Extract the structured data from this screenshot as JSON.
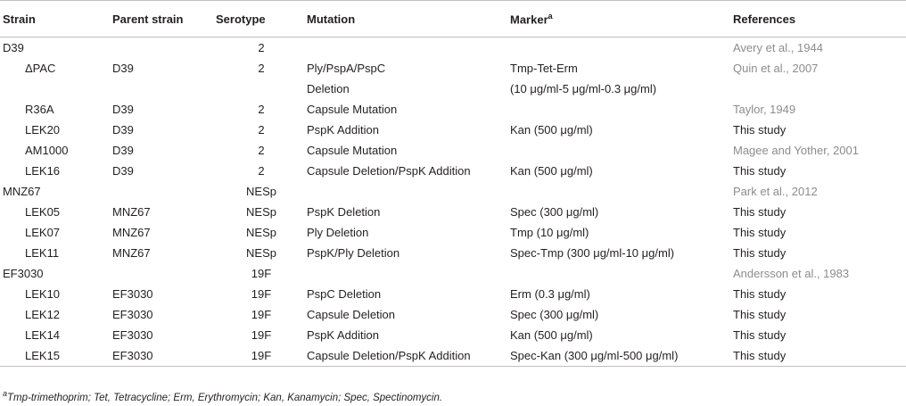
{
  "header": {
    "strain": "Strain",
    "parent": "Parent strain",
    "serotype": "Serotype",
    "mutation": "Mutation",
    "marker": "Marker",
    "marker_sup": "a",
    "references": "References"
  },
  "rows": [
    {
      "strain": "D39",
      "parent": "",
      "serotype": "2",
      "mutation": "",
      "marker": "",
      "ref": "Avery et al., 1944",
      "indent": false,
      "ref_style": "grey"
    },
    {
      "strain": "ΔPAC",
      "parent": "D39",
      "serotype": "2",
      "mutation": "Ply/PspA/PspC",
      "marker": "Tmp-Tet-Erm",
      "ref": "Quin et al., 2007",
      "indent": true,
      "ref_style": "grey"
    },
    {
      "strain": "",
      "parent": "",
      "serotype": "",
      "mutation": "Deletion",
      "marker": "(10 μg/ml-5 μg/ml-0.3 μg/ml)",
      "ref": "",
      "indent": true,
      "ref_style": "grey"
    },
    {
      "strain": "R36A",
      "parent": "D39",
      "serotype": "2",
      "mutation": "Capsule Mutation",
      "marker": "",
      "ref": "Taylor, 1949",
      "indent": true,
      "ref_style": "grey"
    },
    {
      "strain": "LEK20",
      "parent": "D39",
      "serotype": "2",
      "mutation": "PspK Addition",
      "marker": "Kan (500 μg/ml)",
      "ref": "This study",
      "indent": true,
      "ref_style": "dark"
    },
    {
      "strain": "AM1000",
      "parent": "D39",
      "serotype": "2",
      "mutation": "Capsule Mutation",
      "marker": "",
      "ref": "Magee and Yother, 2001",
      "indent": true,
      "ref_style": "grey"
    },
    {
      "strain": "LEK16",
      "parent": "D39",
      "serotype": "2",
      "mutation": "Capsule Deletion/PspK Addition",
      "marker": "Kan (500 μg/ml)",
      "ref": "This study",
      "indent": true,
      "ref_style": "dark"
    },
    {
      "strain": "MNZ67",
      "parent": "",
      "serotype": "NESp",
      "mutation": "",
      "marker": "",
      "ref": "Park et al., 2012",
      "indent": false,
      "ref_style": "grey"
    },
    {
      "strain": "LEK05",
      "parent": "MNZ67",
      "serotype": "NESp",
      "mutation": "PspK Deletion",
      "marker": "Spec (300 μg/ml)",
      "ref": "This study",
      "indent": true,
      "ref_style": "dark"
    },
    {
      "strain": "LEK07",
      "parent": "MNZ67",
      "serotype": "NESp",
      "mutation": "Ply Deletion",
      "marker": "Tmp (10 μg/ml)",
      "ref": "This study",
      "indent": true,
      "ref_style": "dark"
    },
    {
      "strain": "LEK11",
      "parent": "MNZ67",
      "serotype": "NESp",
      "mutation": "PspK/Ply Deletion",
      "marker": "Spec-Tmp (300 μg/ml-10 μg/ml)",
      "ref": "This study",
      "indent": true,
      "ref_style": "dark"
    },
    {
      "strain": "EF3030",
      "parent": "",
      "serotype": "19F",
      "mutation": "",
      "marker": "",
      "ref": "Andersson et al., 1983",
      "indent": false,
      "ref_style": "grey"
    },
    {
      "strain": "LEK10",
      "parent": "EF3030",
      "serotype": "19F",
      "mutation": "PspC Deletion",
      "marker": "Erm (0.3 μg/ml)",
      "ref": "This study",
      "indent": true,
      "ref_style": "dark"
    },
    {
      "strain": "LEK12",
      "parent": "EF3030",
      "serotype": "19F",
      "mutation": "Capsule Deletion",
      "marker": "Spec (300 μg/ml)",
      "ref": "This study",
      "indent": true,
      "ref_style": "dark"
    },
    {
      "strain": "LEK14",
      "parent": "EF3030",
      "serotype": "19F",
      "mutation": "PspK Addition",
      "marker": "Kan (500 μg/ml)",
      "ref": "This study",
      "indent": true,
      "ref_style": "dark"
    },
    {
      "strain": "LEK15",
      "parent": "EF3030",
      "serotype": "19F",
      "mutation": "Capsule Deletion/PspK Addition",
      "marker": "Spec-Kan (300 μg/ml-500 μg/ml)",
      "ref": "This study",
      "indent": true,
      "ref_style": "dark"
    }
  ],
  "footnote": {
    "sup": "a",
    "text": "Tmp-trimethoprim; Tet, Tetracycline; Erm, Erythromycin; Kan, Kanamycin; Spec, Spectinomycin."
  }
}
